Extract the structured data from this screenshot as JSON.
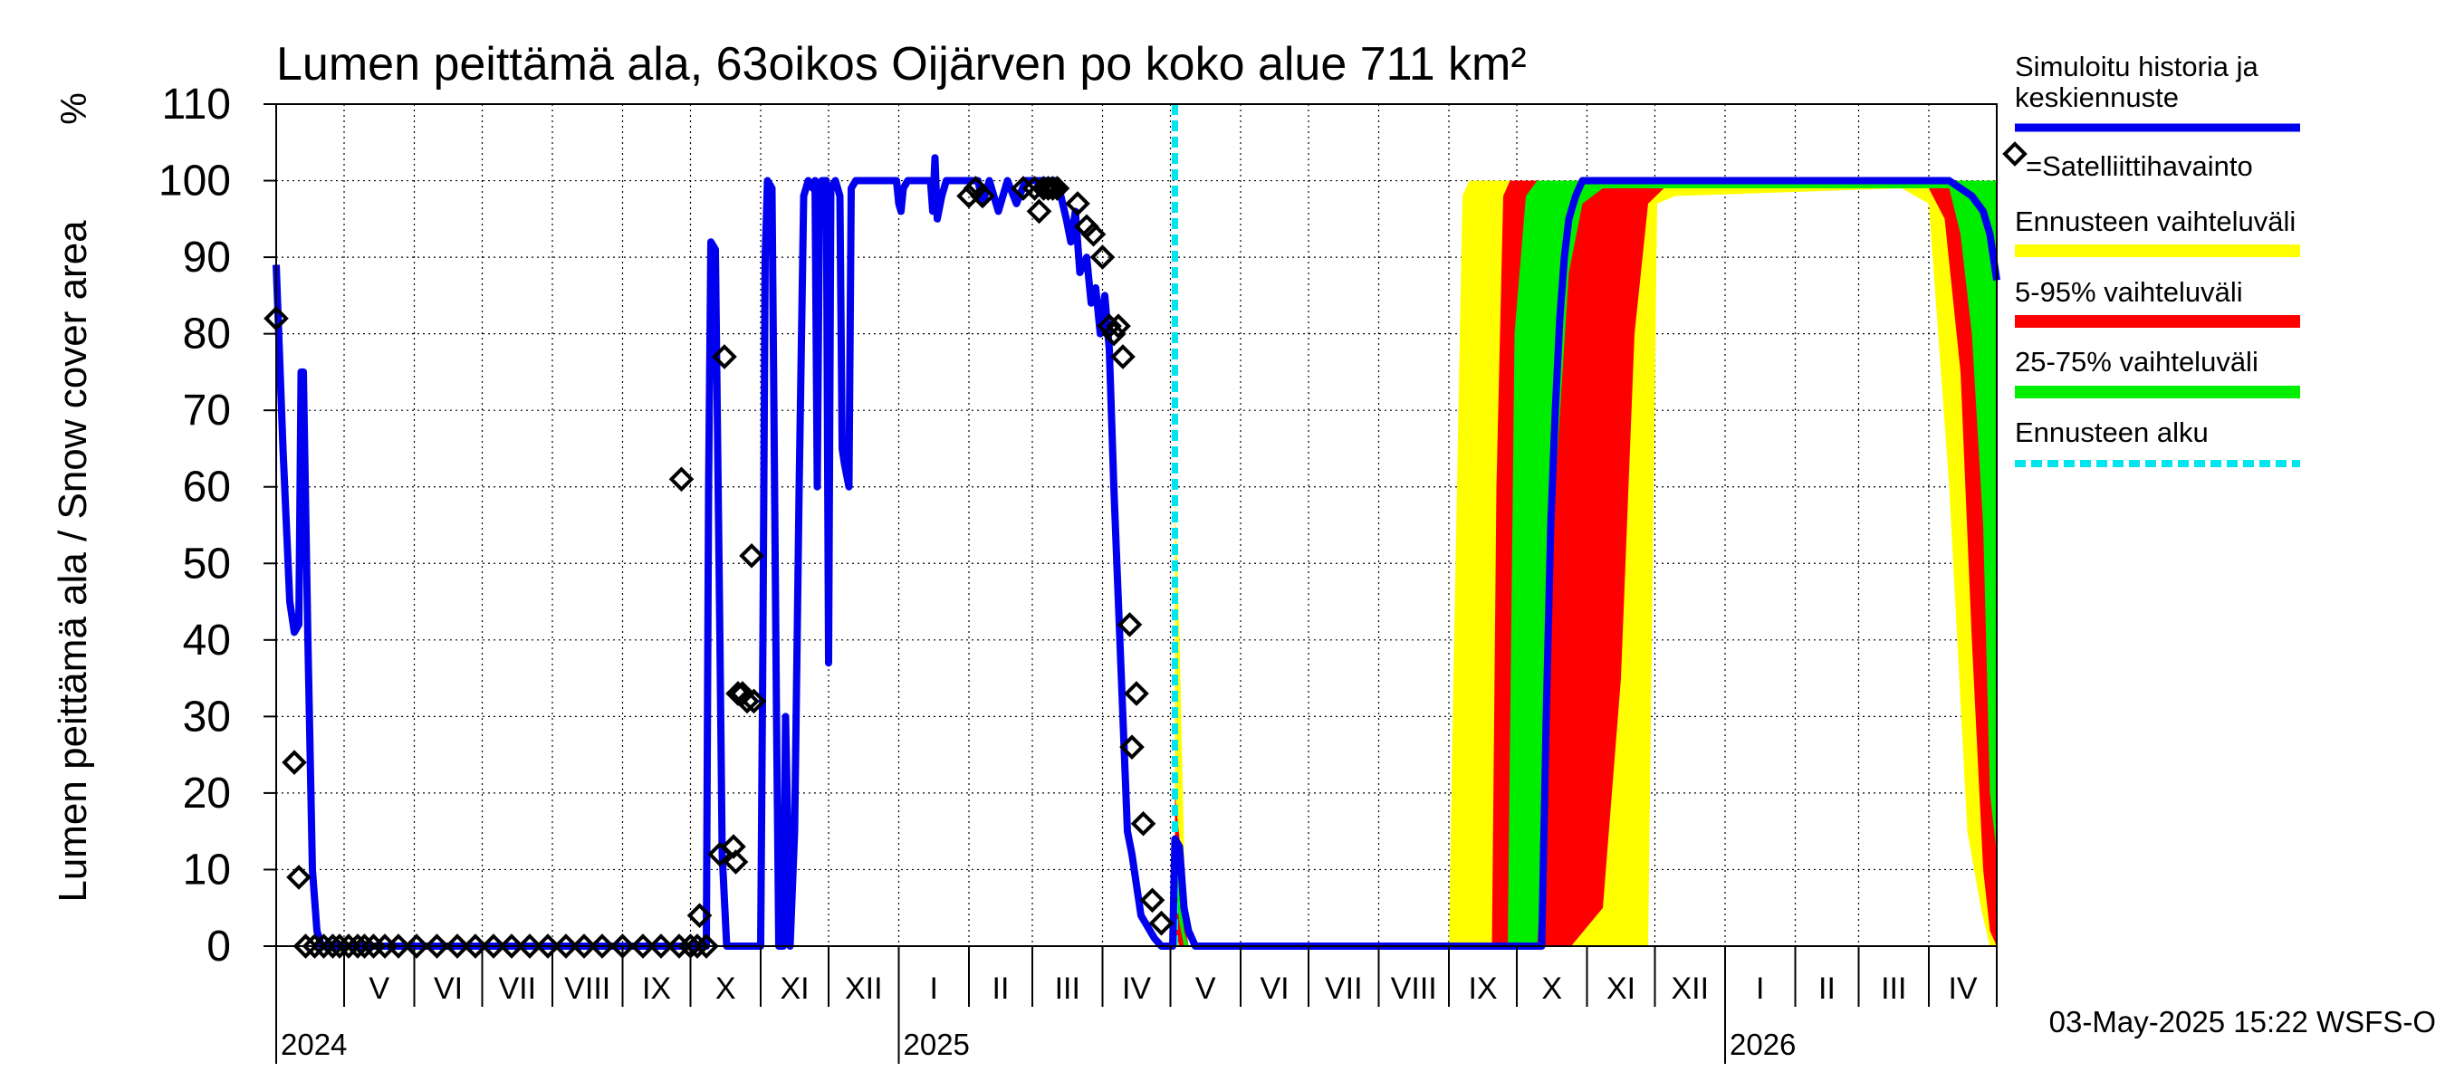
{
  "chart_data": {
    "type": "line",
    "title": "Lumen peittämä ala, 63oikos Oijärven po koko alue 711 km²",
    "ylabel": "Lumen peittämä ala / Snow cover area",
    "yunit": "%",
    "ylim": [
      0,
      110
    ],
    "yticks": [
      0,
      10,
      20,
      30,
      40,
      50,
      60,
      70,
      80,
      90,
      100,
      110
    ],
    "xlim": [
      "2024-04-01",
      "2026-05-01"
    ],
    "months": [
      "V",
      "VI",
      "VII",
      "VIII",
      "IX",
      "X",
      "XI",
      "XII",
      "I",
      "II",
      "III",
      "IV",
      "V",
      "VI",
      "VII",
      "VIII",
      "IX",
      "X",
      "XI",
      "XII",
      "I",
      "II",
      "III",
      "IV"
    ],
    "years": [
      {
        "label": "2024",
        "date": "2024-04-01"
      },
      {
        "label": "2025",
        "date": "2025-01-01"
      },
      {
        "label": "2026",
        "date": "2026-01-01"
      }
    ],
    "forecast_start": "2025-05-03",
    "timestamp": "03-May-2025 15:22 WSFS-O",
    "legend": [
      {
        "key": "simulated",
        "label": "Simuloitu historia ja keskiennuste",
        "color": "#0000ee"
      },
      {
        "key": "satellite",
        "label": "=Satelliittihavainto",
        "color": "#000000"
      },
      {
        "key": "range",
        "label": "Ennusteen vaihteluväli",
        "color": "#ffff00"
      },
      {
        "key": "p5_95",
        "label": "5-95% vaihteluväli",
        "color": "#ff0000"
      },
      {
        "key": "p25_75",
        "label": "25-75% vaihteluväli",
        "color": "#00ee00"
      },
      {
        "key": "fstart",
        "label": "Ennusteen alku",
        "color": "#00e5ee"
      }
    ],
    "series": [
      {
        "name": "Simuloitu historia ja keskiennuste",
        "points": [
          [
            "2024-04-01",
            89
          ],
          [
            "2024-04-04",
            65
          ],
          [
            "2024-04-07",
            45
          ],
          [
            "2024-04-09",
            41
          ],
          [
            "2024-04-11",
            42
          ],
          [
            "2024-04-12",
            75
          ],
          [
            "2024-04-13",
            75
          ],
          [
            "2024-04-15",
            40
          ],
          [
            "2024-04-17",
            10
          ],
          [
            "2024-04-19",
            2
          ],
          [
            "2024-04-21",
            0
          ],
          [
            "2024-10-08",
            0
          ],
          [
            "2024-10-09",
            60
          ],
          [
            "2024-10-10",
            92
          ],
          [
            "2024-10-12",
            91
          ],
          [
            "2024-10-14",
            40
          ],
          [
            "2024-10-15",
            12
          ],
          [
            "2024-10-17",
            0
          ],
          [
            "2024-11-01",
            0
          ],
          [
            "2024-11-02",
            40
          ],
          [
            "2024-11-03",
            90
          ],
          [
            "2024-11-04",
            100
          ],
          [
            "2024-11-06",
            99
          ],
          [
            "2024-11-07",
            65
          ],
          [
            "2024-11-08",
            30
          ],
          [
            "2024-11-09",
            0
          ],
          [
            "2024-11-11",
            0
          ],
          [
            "2024-11-12",
            30
          ],
          [
            "2024-11-14",
            0
          ],
          [
            "2024-11-16",
            15
          ],
          [
            "2024-11-18",
            60
          ],
          [
            "2024-11-20",
            98
          ],
          [
            "2024-11-22",
            100
          ],
          [
            "2024-11-24",
            99
          ],
          [
            "2024-11-25",
            100
          ],
          [
            "2024-11-26",
            60
          ],
          [
            "2024-11-27",
            98
          ],
          [
            "2024-11-28",
            100
          ],
          [
            "2024-11-30",
            100
          ],
          [
            "2024-12-01",
            37
          ],
          [
            "2024-12-02",
            99
          ],
          [
            "2024-12-04",
            100
          ],
          [
            "2024-12-06",
            98
          ],
          [
            "2024-12-07",
            65
          ],
          [
            "2024-12-08",
            63
          ],
          [
            "2024-12-10",
            60
          ],
          [
            "2024-12-11",
            99
          ],
          [
            "2024-12-13",
            100
          ],
          [
            "2024-12-31",
            100
          ],
          [
            "2025-01-01",
            97
          ],
          [
            "2025-01-02",
            96
          ],
          [
            "2025-01-03",
            99
          ],
          [
            "2025-01-05",
            100
          ],
          [
            "2025-01-15",
            100
          ],
          [
            "2025-01-16",
            96
          ],
          [
            "2025-01-17",
            103
          ],
          [
            "2025-01-18",
            95
          ],
          [
            "2025-01-20",
            98
          ],
          [
            "2025-01-22",
            100
          ],
          [
            "2025-02-05",
            100
          ],
          [
            "2025-02-07",
            97
          ],
          [
            "2025-02-10",
            100
          ],
          [
            "2025-02-14",
            96
          ],
          [
            "2025-02-18",
            100
          ],
          [
            "2025-02-22",
            97
          ],
          [
            "2025-02-26",
            100
          ],
          [
            "2025-03-05",
            100
          ],
          [
            "2025-03-12",
            100
          ],
          [
            "2025-03-16",
            95
          ],
          [
            "2025-03-18",
            92
          ],
          [
            "2025-03-20",
            96
          ],
          [
            "2025-03-22",
            88
          ],
          [
            "2025-03-25",
            90
          ],
          [
            "2025-03-27",
            84
          ],
          [
            "2025-03-29",
            86
          ],
          [
            "2025-03-31",
            80
          ],
          [
            "2025-04-02",
            85
          ],
          [
            "2025-04-04",
            78
          ],
          [
            "2025-04-06",
            60
          ],
          [
            "2025-04-08",
            45
          ],
          [
            "2025-04-10",
            30
          ],
          [
            "2025-04-12",
            15
          ],
          [
            "2025-04-14",
            12
          ],
          [
            "2025-04-16",
            8
          ],
          [
            "2025-04-18",
            4
          ],
          [
            "2025-04-20",
            3
          ],
          [
            "2025-04-22",
            2
          ],
          [
            "2025-04-24",
            1
          ],
          [
            "2025-04-27",
            0
          ],
          [
            "2025-05-02",
            0
          ],
          [
            "2025-05-03",
            14
          ],
          [
            "2025-05-05",
            13
          ],
          [
            "2025-05-07",
            5
          ],
          [
            "2025-05-09",
            2
          ],
          [
            "2025-05-12",
            0
          ],
          [
            "2025-10-12",
            0
          ],
          [
            "2025-10-14",
            30
          ],
          [
            "2025-10-16",
            55
          ],
          [
            "2025-10-18",
            70
          ],
          [
            "2025-10-20",
            82
          ],
          [
            "2025-10-22",
            90
          ],
          [
            "2025-10-24",
            95
          ],
          [
            "2025-10-27",
            98
          ],
          [
            "2025-10-30",
            100
          ],
          [
            "2026-04-10",
            100
          ],
          [
            "2026-04-15",
            99
          ],
          [
            "2026-04-20",
            98
          ],
          [
            "2026-04-25",
            96
          ],
          [
            "2026-04-28",
            93
          ],
          [
            "2026-05-01",
            87
          ]
        ]
      }
    ],
    "satellite": [
      [
        "2024-04-01",
        82
      ],
      [
        "2024-04-09",
        24
      ],
      [
        "2024-04-11",
        9
      ],
      [
        "2024-04-14",
        0
      ],
      [
        "2024-04-18",
        0
      ],
      [
        "2024-04-22",
        0
      ],
      [
        "2024-04-26",
        0
      ],
      [
        "2024-04-29",
        0
      ],
      [
        "2024-05-03",
        0
      ],
      [
        "2024-05-07",
        0
      ],
      [
        "2024-05-10",
        0
      ],
      [
        "2024-05-14",
        0
      ],
      [
        "2024-05-19",
        0
      ],
      [
        "2024-05-25",
        0
      ],
      [
        "2024-06-02",
        0
      ],
      [
        "2024-06-11",
        0
      ],
      [
        "2024-06-20",
        0
      ],
      [
        "2024-06-28",
        0
      ],
      [
        "2024-07-06",
        0
      ],
      [
        "2024-07-14",
        0
      ],
      [
        "2024-07-22",
        0
      ],
      [
        "2024-07-30",
        0
      ],
      [
        "2024-08-07",
        0
      ],
      [
        "2024-08-15",
        0
      ],
      [
        "2024-08-23",
        0
      ],
      [
        "2024-09-01",
        0
      ],
      [
        "2024-09-10",
        0
      ],
      [
        "2024-09-18",
        0
      ],
      [
        "2024-09-26",
        0
      ],
      [
        "2024-09-27",
        61
      ],
      [
        "2024-10-01",
        0
      ],
      [
        "2024-10-04",
        0
      ],
      [
        "2024-10-05",
        4
      ],
      [
        "2024-10-08",
        0
      ],
      [
        "2024-10-14",
        12
      ],
      [
        "2024-10-16",
        77
      ],
      [
        "2024-10-20",
        13
      ],
      [
        "2024-10-21",
        11
      ],
      [
        "2024-10-22",
        33
      ],
      [
        "2024-10-24",
        33
      ],
      [
        "2024-10-26",
        32
      ],
      [
        "2024-10-28",
        51
      ],
      [
        "2024-10-29",
        32
      ],
      [
        "2025-02-01",
        98
      ],
      [
        "2025-02-04",
        99
      ],
      [
        "2025-02-07",
        98
      ],
      [
        "2025-02-25",
        99
      ],
      [
        "2025-03-02",
        99
      ],
      [
        "2025-03-04",
        96
      ],
      [
        "2025-03-06",
        99
      ],
      [
        "2025-03-08",
        99
      ],
      [
        "2025-03-10",
        99
      ],
      [
        "2025-03-12",
        99
      ],
      [
        "2025-03-21",
        97
      ],
      [
        "2025-03-25",
        94
      ],
      [
        "2025-03-28",
        93
      ],
      [
        "2025-04-01",
        90
      ],
      [
        "2025-04-04",
        81
      ],
      [
        "2025-04-06",
        80
      ],
      [
        "2025-04-08",
        81
      ],
      [
        "2025-04-10",
        77
      ],
      [
        "2025-04-13",
        42
      ],
      [
        "2025-04-14",
        26
      ],
      [
        "2025-04-16",
        33
      ],
      [
        "2025-04-19",
        16
      ],
      [
        "2025-04-23",
        6
      ],
      [
        "2025-04-27",
        3
      ]
    ],
    "bands": {
      "range": [
        [
          "2025-05-03",
          0,
          60
        ],
        [
          "2025-05-05",
          0,
          40
        ],
        [
          "2025-05-08",
          0,
          0
        ],
        [
          "2025-09-01",
          0,
          0
        ],
        [
          "2025-09-03",
          0,
          35
        ],
        [
          "2025-09-07",
          0,
          98
        ],
        [
          "2025-09-10",
          0,
          100
        ],
        [
          "2025-11-25",
          0,
          100
        ],
        [
          "2025-11-28",
          0,
          100
        ],
        [
          "2025-12-02",
          97,
          100
        ],
        [
          "2025-12-10",
          98,
          100
        ],
        [
          "2026-03-20",
          99,
          100
        ],
        [
          "2026-04-01",
          97,
          100
        ],
        [
          "2026-04-10",
          60,
          100
        ],
        [
          "2026-04-18",
          15,
          100
        ],
        [
          "2026-04-24",
          5,
          100
        ],
        [
          "2026-04-28",
          0,
          100
        ],
        [
          "2026-05-01",
          0,
          100
        ]
      ],
      "p5_95": [
        [
          "2025-05-03",
          2,
          20
        ],
        [
          "2025-05-05",
          0,
          14
        ],
        [
          "2025-05-07",
          0,
          4
        ],
        [
          "2025-05-09",
          0,
          0
        ],
        [
          "2025-09-20",
          0,
          0
        ],
        [
          "2025-09-22",
          0,
          60
        ],
        [
          "2025-09-25",
          0,
          98
        ],
        [
          "2025-09-28",
          0,
          100
        ],
        [
          "2025-10-25",
          0,
          100
        ],
        [
          "2025-11-08",
          5,
          100
        ],
        [
          "2025-11-16",
          35,
          100
        ],
        [
          "2025-11-22",
          80,
          100
        ],
        [
          "2025-11-28",
          97,
          100
        ],
        [
          "2025-12-05",
          99,
          100
        ],
        [
          "2026-04-01",
          99,
          100
        ],
        [
          "2026-04-08",
          95,
          100
        ],
        [
          "2026-04-15",
          75,
          100
        ],
        [
          "2026-04-20",
          40,
          100
        ],
        [
          "2026-04-25",
          10,
          100
        ],
        [
          "2026-04-28",
          2,
          100
        ],
        [
          "2026-05-01",
          0,
          100
        ]
      ],
      "p25_75": [
        [
          "2025-05-03",
          8,
          13
        ],
        [
          "2025-05-05",
          3,
          8
        ],
        [
          "2025-05-07",
          0,
          2
        ],
        [
          "2025-05-09",
          0,
          0
        ],
        [
          "2025-09-27",
          0,
          0
        ],
        [
          "2025-09-30",
          0,
          80
        ],
        [
          "2025-10-05",
          0,
          98
        ],
        [
          "2025-10-10",
          0,
          100
        ],
        [
          "2025-10-14",
          20,
          100
        ],
        [
          "2025-10-18",
          60,
          100
        ],
        [
          "2025-10-24",
          88,
          100
        ],
        [
          "2025-10-30",
          97,
          100
        ],
        [
          "2025-11-08",
          99,
          100
        ],
        [
          "2026-04-10",
          99,
          100
        ],
        [
          "2026-04-15",
          93,
          100
        ],
        [
          "2026-04-20",
          80,
          100
        ],
        [
          "2026-04-25",
          55,
          100
        ],
        [
          "2026-04-28",
          20,
          100
        ],
        [
          "2026-05-01",
          12,
          100
        ]
      ]
    }
  }
}
